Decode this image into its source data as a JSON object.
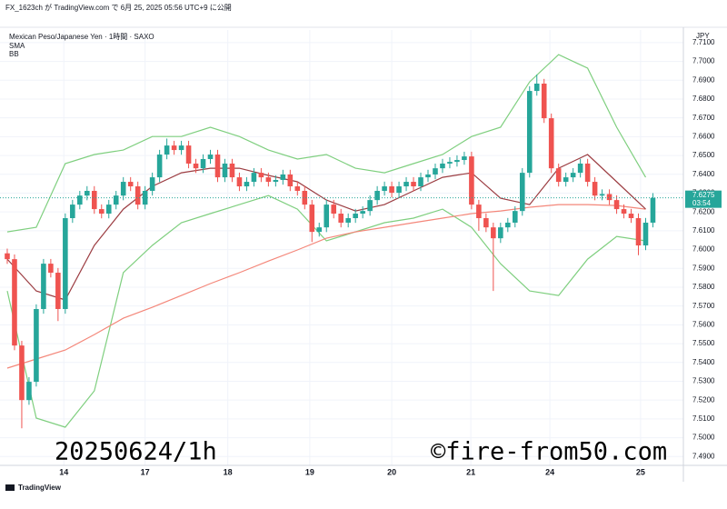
{
  "chart_data": {
    "type": "candlestick",
    "title": "FX_1623ch が TradingView.com で 6月 25, 2025 05:56 UTC+9 に公開",
    "subtitle": "Mexican Peso/Japanese Yen · 1時間 · SAXO",
    "legend": [
      "SMA",
      "BB"
    ],
    "y_unit": "JPY",
    "countdown": "03:54",
    "last_price": 7.6275,
    "watermarks": [
      "20250624/1h",
      "©fire-from50.com"
    ],
    "brand": "TradingView",
    "up_color": "#26a69a",
    "down_color": "#ef5350",
    "xlim": [
      -1,
      93.2
    ],
    "ylim": [
      7.4853,
      7.7167
    ],
    "xticks": [
      {
        "value": 7.8,
        "label": "14"
      },
      {
        "value": 19.0,
        "label": "17"
      },
      {
        "value": 30.4,
        "label": "18"
      },
      {
        "value": 41.7,
        "label": "19"
      },
      {
        "value": 53.0,
        "label": "20"
      },
      {
        "value": 63.9,
        "label": "21"
      },
      {
        "value": 74.8,
        "label": "24"
      },
      {
        "value": 87.3,
        "label": "25"
      }
    ],
    "yticks": [
      {
        "value": 7.49,
        "label": "7.4900"
      },
      {
        "value": 7.5,
        "label": "7.5000"
      },
      {
        "value": 7.51,
        "label": "7.5100"
      },
      {
        "value": 7.52,
        "label": "7.5200"
      },
      {
        "value": 7.53,
        "label": "7.5300"
      },
      {
        "value": 7.54,
        "label": "7.5400"
      },
      {
        "value": 7.55,
        "label": "7.5500"
      },
      {
        "value": 7.56,
        "label": "7.5600"
      },
      {
        "value": 7.57,
        "label": "7.5700"
      },
      {
        "value": 7.58,
        "label": "7.5800"
      },
      {
        "value": 7.59,
        "label": "7.5900"
      },
      {
        "value": 7.6,
        "label": "7.6000"
      },
      {
        "value": 7.61,
        "label": "7.6100"
      },
      {
        "value": 7.62,
        "label": "7.6200"
      },
      {
        "value": 7.63,
        "label": "7.6300"
      },
      {
        "value": 7.64,
        "label": "7.6400"
      },
      {
        "value": 7.65,
        "label": "7.6500"
      },
      {
        "value": 7.66,
        "label": "7.6600"
      },
      {
        "value": 7.67,
        "label": "7.6700"
      },
      {
        "value": 7.68,
        "label": "7.6800"
      },
      {
        "value": 7.69,
        "label": "7.6900"
      },
      {
        "value": 7.7,
        "label": "7.7000"
      },
      {
        "value": 7.71,
        "label": "7.7100"
      }
    ],
    "open": [
      7.598,
      7.5949,
      7.549,
      7.52,
      7.5297,
      7.5684,
      7.5925,
      7.5877,
      7.5684,
      7.6167,
      7.6239,
      7.6287,
      7.6312,
      7.6215,
      7.6191,
      7.6239,
      7.6287,
      7.636,
      7.6336,
      7.6239,
      7.6312,
      7.6384,
      7.6505,
      7.6553,
      7.6529,
      7.6553,
      7.6457,
      7.6432,
      7.6481,
      7.6505,
      7.6384,
      7.6457,
      7.6384,
      7.6336,
      7.636,
      7.6408,
      7.6384,
      7.636,
      7.637,
      7.6399,
      7.6336,
      7.6312,
      7.6239,
      7.6094,
      7.6118,
      7.6239,
      7.6191,
      7.6143,
      7.6167,
      7.6191,
      7.6205,
      7.6263,
      7.6312,
      7.6336,
      7.6302,
      7.6336,
      7.636,
      7.6336,
      7.6384,
      7.6399,
      7.6432,
      7.6457,
      7.6466,
      7.6476,
      7.6495,
      7.6239,
      7.6167,
      7.6118,
      7.606,
      7.6118,
      7.6143,
      7.6205,
      7.6408,
      7.6843,
      7.6882,
      7.6698,
      7.6432,
      7.636,
      7.6384,
      7.6408,
      7.6457,
      7.636,
      7.6287,
      7.6295,
      7.6263,
      7.6215,
      7.6191,
      7.6167,
      7.6022,
      7.6143
    ],
    "high": [
      7.6005,
      7.5974,
      7.5515,
      7.5322,
      7.5709,
      7.595,
      7.595,
      7.5902,
      7.6192,
      7.6264,
      7.6312,
      7.6337,
      7.6337,
      7.624,
      7.6264,
      7.6312,
      7.6385,
      7.6385,
      7.6361,
      7.6337,
      7.6409,
      7.653,
      7.659,
      7.6578,
      7.6578,
      7.6578,
      7.6482,
      7.6506,
      7.653,
      7.653,
      7.6482,
      7.6482,
      7.6409,
      7.6385,
      7.6433,
      7.6433,
      7.6409,
      7.6395,
      7.6424,
      7.6424,
      7.6361,
      7.6337,
      7.6264,
      7.6143,
      7.6264,
      7.6264,
      7.6216,
      7.6192,
      7.6216,
      7.623,
      7.6288,
      7.6337,
      7.6361,
      7.6361,
      7.6361,
      7.6385,
      7.6385,
      7.6409,
      7.6424,
      7.6457,
      7.6482,
      7.6491,
      7.6501,
      7.652,
      7.652,
      7.6264,
      7.6192,
      7.6143,
      7.6143,
      7.6168,
      7.623,
      7.6433,
      7.6868,
      7.693,
      7.6907,
      7.6723,
      7.6457,
      7.6409,
      7.6433,
      7.6482,
      7.6482,
      7.6385,
      7.632,
      7.632,
      7.6288,
      7.624,
      7.6216,
      7.6192,
      7.6168,
      7.63
    ],
    "low": [
      7.5924,
      7.5465,
      7.505,
      7.5175,
      7.5272,
      7.5659,
      7.5852,
      7.562,
      7.5659,
      7.6142,
      7.6214,
      7.6262,
      7.619,
      7.6166,
      7.6166,
      7.6214,
      7.6262,
      7.6311,
      7.6214,
      7.6214,
      7.6287,
      7.6359,
      7.648,
      7.6504,
      7.6504,
      7.6432,
      7.6407,
      7.6407,
      7.6456,
      7.6359,
      7.6359,
      7.6359,
      7.6311,
      7.6311,
      7.6335,
      7.6359,
      7.6335,
      7.6335,
      7.6345,
      7.6311,
      7.6287,
      7.6214,
      7.604,
      7.6069,
      7.6093,
      7.6166,
      7.6118,
      7.6118,
      7.6142,
      7.6166,
      7.618,
      7.6238,
      7.6287,
      7.6277,
      7.6277,
      7.6311,
      7.6311,
      7.6311,
      7.6359,
      7.6374,
      7.6407,
      7.6432,
      7.6441,
      7.6451,
      7.6214,
      7.61,
      7.6093,
      7.578,
      7.6035,
      7.6093,
      7.6118,
      7.618,
      7.6383,
      7.6818,
      7.6673,
      7.6407,
      7.6335,
      7.6335,
      7.6359,
      7.6383,
      7.6335,
      7.6262,
      7.6262,
      7.6238,
      7.619,
      7.6166,
      7.6142,
      7.597,
      7.5997,
      7.6118
    ],
    "close": [
      7.5949,
      7.549,
      7.52,
      7.5297,
      7.5684,
      7.5925,
      7.5877,
      7.5684,
      7.6167,
      7.6239,
      7.6287,
      7.6312,
      7.6215,
      7.6191,
      7.6239,
      7.6287,
      7.636,
      7.6336,
      7.6239,
      7.6312,
      7.6384,
      7.6505,
      7.6553,
      7.6529,
      7.6553,
      7.6457,
      7.6432,
      7.6481,
      7.6505,
      7.6384,
      7.6457,
      7.6384,
      7.6336,
      7.636,
      7.6408,
      7.6384,
      7.636,
      7.637,
      7.6399,
      7.6336,
      7.6312,
      7.6239,
      7.6094,
      7.6118,
      7.6239,
      7.6191,
      7.6143,
      7.6167,
      7.6191,
      7.6205,
      7.6263,
      7.6312,
      7.6336,
      7.6302,
      7.6336,
      7.636,
      7.6336,
      7.6384,
      7.6399,
      7.6432,
      7.6457,
      7.6466,
      7.6476,
      7.6495,
      7.6239,
      7.6167,
      7.6118,
      7.606,
      7.6118,
      7.6143,
      7.6205,
      7.6408,
      7.6843,
      7.6882,
      7.6698,
      7.6432,
      7.636,
      7.6384,
      7.6408,
      7.6457,
      7.636,
      7.6287,
      7.6295,
      7.6263,
      7.6215,
      7.6191,
      7.6167,
      7.6022,
      7.6143,
      7.6275
    ],
    "series": [
      {
        "color": "#7fcf7f",
        "x": [
          0,
          4,
          8,
          12,
          16,
          20,
          24,
          28,
          32,
          36,
          40,
          44,
          48,
          52,
          56,
          60,
          64,
          68,
          72,
          76,
          80,
          84,
          88
        ],
        "values": [
          7.6094,
          7.6118,
          7.6457,
          7.6505,
          7.6529,
          7.6601,
          7.6601,
          7.665,
          7.6601,
          7.6529,
          7.6481,
          7.6505,
          7.6432,
          7.6408,
          7.6457,
          7.6505,
          7.6601,
          7.665,
          7.6891,
          7.7036,
          7.6964,
          7.665,
          7.6384
        ]
      },
      {
        "color": "#7fcf7f",
        "x": [
          0,
          4,
          8,
          12,
          16,
          20,
          24,
          28,
          32,
          36,
          40,
          44,
          48,
          52,
          56,
          60,
          64,
          68,
          72,
          76,
          80,
          84,
          88
        ],
        "values": [
          7.578,
          7.5104,
          7.5056,
          7.5249,
          7.5877,
          7.6022,
          7.6143,
          7.6191,
          7.6239,
          7.6287,
          7.6215,
          7.6046,
          7.6094,
          7.6143,
          7.6167,
          7.6215,
          7.6118,
          7.5925,
          7.578,
          7.5756,
          7.5949,
          7.607,
          7.6046
        ]
      },
      {
        "color": "#f4877a",
        "x": [
          0,
          4,
          8,
          12,
          16,
          20,
          24,
          28,
          32,
          36,
          40,
          44,
          48,
          52,
          56,
          60,
          64,
          68,
          72,
          76,
          80,
          84,
          88
        ],
        "values": [
          7.537,
          7.5418,
          7.5466,
          7.5548,
          7.5635,
          7.5693,
          7.5756,
          7.5819,
          7.5877,
          7.5939,
          7.5998,
          7.606,
          7.6094,
          7.6118,
          7.6143,
          7.6167,
          7.6191,
          7.6205,
          7.6225,
          7.6239,
          7.6239,
          7.6234,
          7.6215
        ]
      },
      {
        "color": "#9c3d42",
        "x": [
          0,
          4,
          8,
          12,
          16,
          20,
          24,
          28,
          32,
          36,
          40,
          44,
          48,
          52,
          56,
          60,
          64,
          68,
          72,
          76,
          80,
          84,
          88
        ],
        "values": [
          7.5949,
          7.578,
          7.5732,
          7.6022,
          7.6215,
          7.6336,
          7.6408,
          7.6432,
          7.6432,
          7.6394,
          7.636,
          7.6263,
          7.6205,
          7.6239,
          7.6312,
          7.6384,
          7.6408,
          7.6273,
          7.6239,
          7.6432,
          7.6505,
          7.636,
          7.6215
        ]
      }
    ]
  }
}
